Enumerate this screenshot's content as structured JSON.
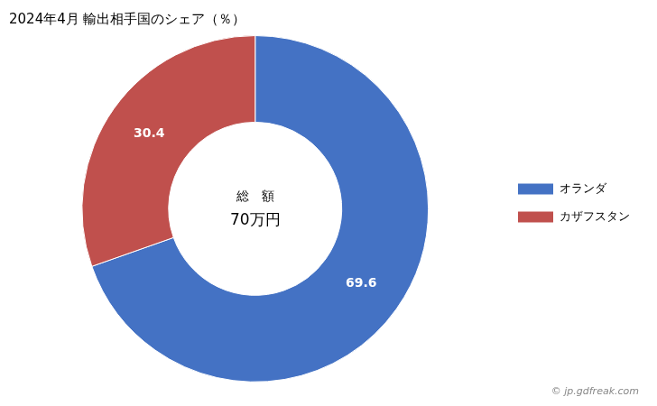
{
  "chart_data": {
    "type": "doughnut",
    "title": "2024年4月 輸出相手国のシェア（％）",
    "categories": [
      "オランダ",
      "カザフスタン"
    ],
    "values": [
      69.6,
      30.4
    ],
    "colors": [
      "#4472C4",
      "#C0504D"
    ],
    "data_labels": true,
    "legend": "right",
    "annotations": [
      "総　額",
      "70万円"
    ],
    "footnote": "© jp.gdfreak.com"
  }
}
